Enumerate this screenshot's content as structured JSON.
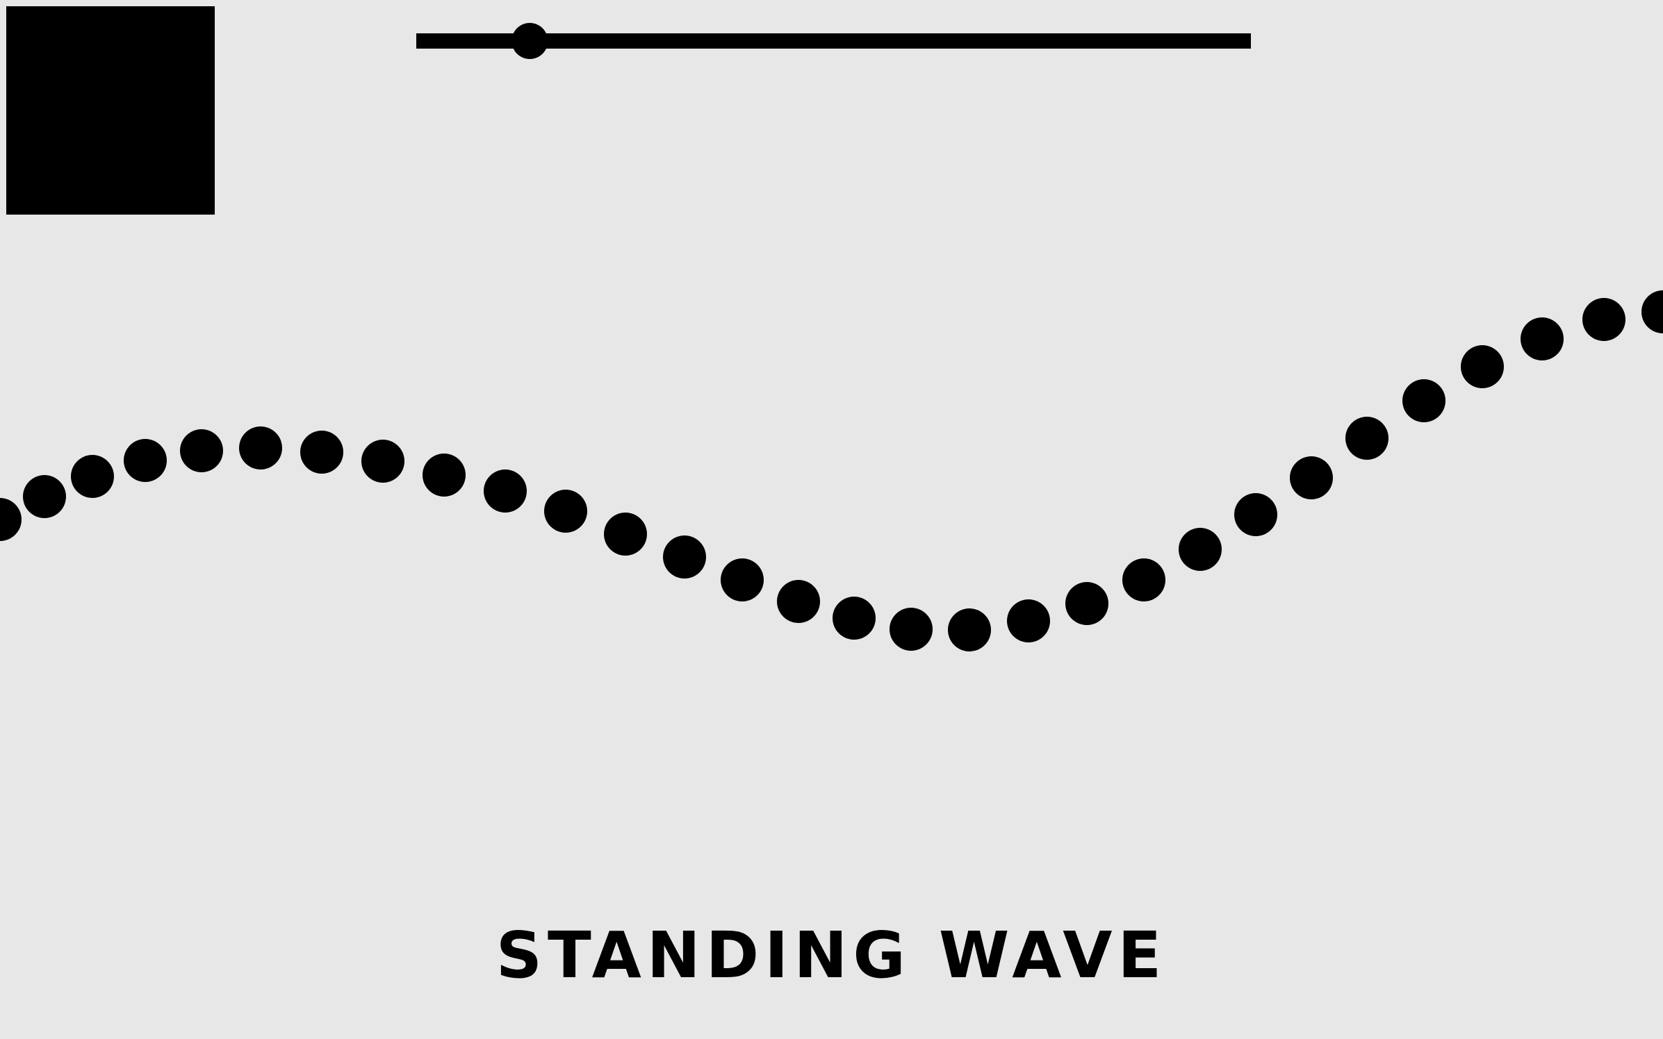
{
  "app": {
    "title": "STANDING WAVE"
  },
  "controls": {
    "toggle_button": {
      "icon": "square-stop-icon",
      "color": "#000000"
    },
    "slider": {
      "value": 0.136,
      "color": "#000000"
    }
  },
  "wave": {
    "dot_color": "#000000",
    "background_color": "#e7e7e7",
    "dot_count": 30
  }
}
